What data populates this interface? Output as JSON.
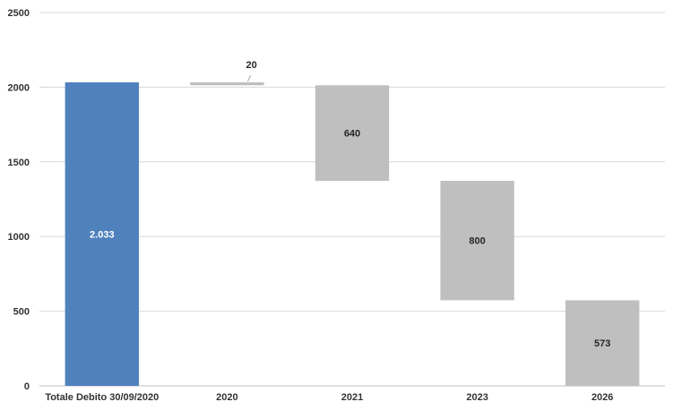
{
  "chart_data": {
    "type": "bar",
    "subtype": "waterfall",
    "title": "",
    "xlabel": "",
    "ylabel": "",
    "ylim": [
      0,
      2500
    ],
    "yticks": [
      0,
      500,
      1000,
      1500,
      2000,
      2500
    ],
    "grid": true,
    "legend": "none",
    "categories": [
      "Totale Debito 30/09/2020",
      "2020",
      "2021",
      "2023",
      "2026"
    ],
    "bars": [
      {
        "category": "Totale Debito 30/09/2020",
        "start": 0,
        "end": 2033,
        "label": "2.033",
        "kind": "total"
      },
      {
        "category": "2020",
        "start": 2033,
        "end": 2013,
        "label": "20",
        "kind": "decrease"
      },
      {
        "category": "2021",
        "start": 2013,
        "end": 1373,
        "label": "640",
        "kind": "decrease"
      },
      {
        "category": "2023",
        "start": 1373,
        "end": 573,
        "label": "800",
        "kind": "decrease"
      },
      {
        "category": "2026",
        "start": 573,
        "end": 0,
        "label": "573",
        "kind": "decrease"
      }
    ],
    "colors": {
      "total": "#4f81bd",
      "decrease": "#bfbfbf",
      "total_label": "#ffffff",
      "decrease_label": "#262626",
      "grid": "#d9d9d9"
    }
  }
}
